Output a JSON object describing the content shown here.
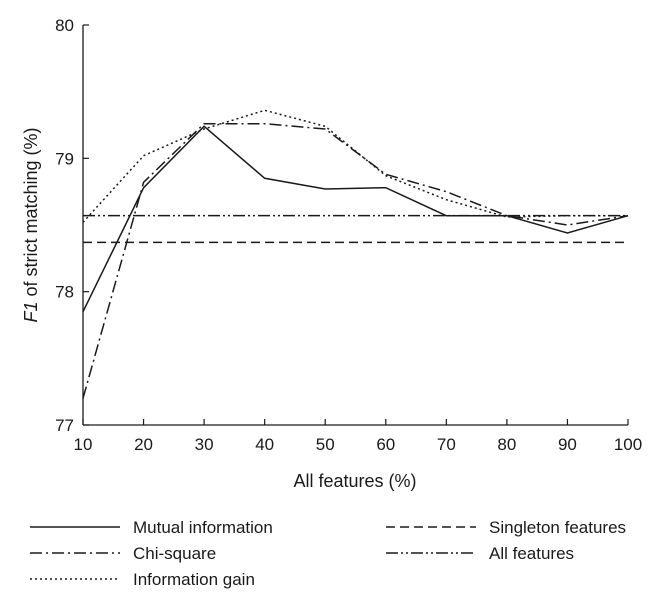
{
  "chart_data": {
    "type": "line",
    "xlabel": "All features (%)",
    "ylabel_prefix": "F1",
    "ylabel_rest": " of strict matching (%)",
    "x": [
      10,
      20,
      30,
      40,
      50,
      60,
      70,
      80,
      90,
      100
    ],
    "xticks": [
      "10",
      "20",
      "30",
      "40",
      "50",
      "60",
      "70",
      "80",
      "90",
      "100"
    ],
    "yticks": [
      "77",
      "78",
      "79",
      "80"
    ],
    "xlim": [
      10,
      100
    ],
    "ylim": [
      77,
      80
    ],
    "grid": false,
    "legend_position": "bottom",
    "series": [
      {
        "name": "Mutual information",
        "dash": "solid",
        "values": [
          77.85,
          78.78,
          79.24,
          78.85,
          78.77,
          78.78,
          78.57,
          78.57,
          78.44,
          78.57
        ]
      },
      {
        "name": "Chi-square",
        "dash": "dashdot",
        "values": [
          77.2,
          78.82,
          79.26,
          79.26,
          79.22,
          78.88,
          78.75,
          78.57,
          78.5,
          78.57
        ]
      },
      {
        "name": "Information gain",
        "dash": "dotted",
        "values": [
          78.52,
          79.02,
          79.22,
          79.36,
          79.24,
          78.87,
          78.69,
          78.56,
          78.57,
          78.57
        ]
      },
      {
        "name": "Singleton features",
        "dash": "dashed",
        "constant": 78.37
      },
      {
        "name": "All features",
        "dash": "dashdotdot",
        "constant": 78.57
      }
    ]
  }
}
